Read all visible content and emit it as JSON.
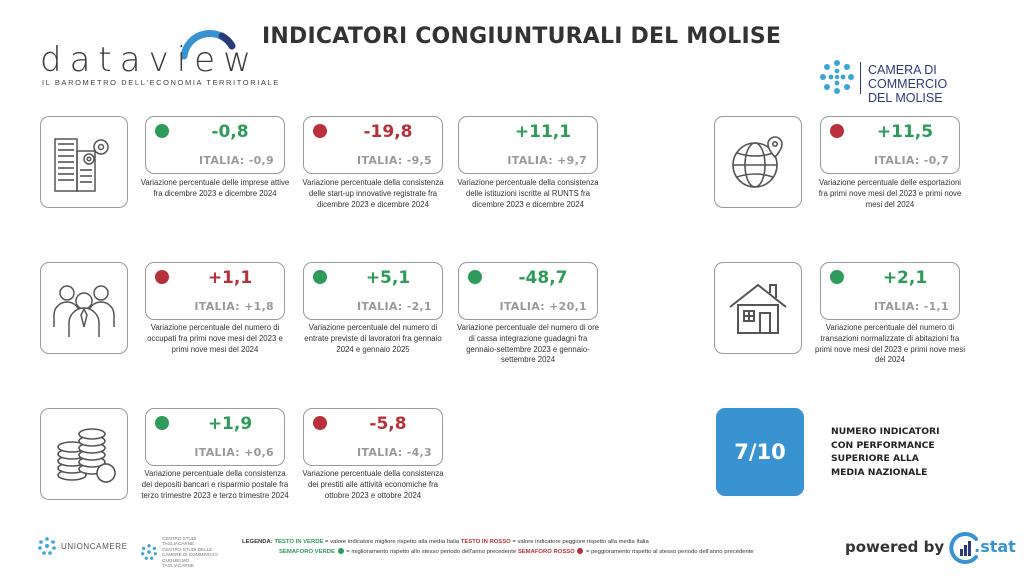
{
  "header": {
    "title": "INDICATORI CONGIUNTURALI DEL MOLISE",
    "logo_word": "dataview",
    "logo_tagline": "IL BAROMETRO DELL'ECONOMIA TERRITORIALE",
    "camera_name": "CAMERA DI COMMERCIO\nDEL MOLISE"
  },
  "colors": {
    "green": "#2e9b5b",
    "red": "#b8303b",
    "blue": "#3a93d1",
    "border": "#9a9a9a"
  },
  "groups": [
    {
      "icon": "office-buildings-gear-icon"
    },
    {
      "icon": "globe-pin-icon"
    },
    {
      "icon": "people-icon"
    },
    {
      "icon": "house-icon"
    },
    {
      "icon": "coins-icon"
    }
  ],
  "indicators": [
    {
      "status": "green",
      "value": "-0,8",
      "italia": "ITALIA: -0,9",
      "desc": "Variazione percentuale delle imprese attive fra dicembre 2023 e dicembre 2024"
    },
    {
      "status": "red",
      "value": "-19,8",
      "italia": "ITALIA: -9,5",
      "desc": "Variazione percentuale della consistenza delle start-up innovative registrate fra dicembre 2023 e dicembre 2024"
    },
    {
      "status": "none",
      "value": "+11,1",
      "italia": "ITALIA: +9,7",
      "desc": "Variazione percentuale della consistenza delle istituzioni iscritte al RUNTS fra dicembre 2023 e dicembre 2024"
    },
    {
      "status": "red",
      "value": "+11,5",
      "italia": "ITALIA: -0,7",
      "desc": "Variazione percentuale delle esportazioni fra primi nove mesi del 2023 e primi nove mesi del 2024"
    },
    {
      "status": "red",
      "value": "+1,1",
      "italia": "ITALIA: +1,8",
      "desc": "Variazione percentuale del numero di occupati fra primi nove mesi del 2023 e primi nove mesi del 2024"
    },
    {
      "status": "green",
      "value": "+5,1",
      "italia": "ITALIA: -2,1",
      "desc": "Variazione percentuale del numero di entrate previste di lavoratori fra gennaio 2024 e gennaio 2025"
    },
    {
      "status": "green",
      "value": "-48,7",
      "italia": "ITALIA: +20,1",
      "desc": "Variazione percentuale del numero di ore di cassa integrazione guadagni fra gennaio-settembre 2023 e gennaio-settembre 2024"
    },
    {
      "status": "green",
      "value": "+2,1",
      "italia": "ITALIA: -1,1",
      "desc": "Variazione percentuale del numero di transazioni normalizzate di abitazioni fra primi nove mesi del 2023 e primi nove mesi del 2024"
    },
    {
      "status": "green",
      "value": "+1,9",
      "italia": "ITALIA: +0,6",
      "desc": "Variazione percentuale della consistenza dei depositi bancari e risparmio postale fra terzo trimestre 2023 e terzo trimestre 2024"
    },
    {
      "status": "red",
      "value": "-5,8",
      "italia": "ITALIA: -4,3",
      "desc": "Variazione percentuale della consistenza dei prestiti alle attività economiche fra ottobre 2023 e ottobre 2024"
    }
  ],
  "summary": {
    "value": "7/10",
    "label": "NUMERO INDICATORI\nCON PERFORMANCE\nSUPERIORE ALLA\nMEDIA NAZIONALE"
  },
  "footer": {
    "unioncamere": "UNIONCAMERE",
    "centro_studi": "CENTRO STUDI TAGLIACARNE\nCENTRO STUDI DELLE CAMERE DI COMMERCIO\nGUGLIELMO TAGLIACARNE",
    "legend_label": "LEGENDA:",
    "legend_green_text": "TESTO IN VERDE",
    "legend_green_desc": " = valore indicatore migliore rispetto alla media Italia ",
    "legend_red_text": "TESTO IN ROSSO",
    "legend_red_desc": " = valore indicatore peggiore rispetto alla media Italia",
    "legend_green_light": "SEMAFORO VERDE",
    "legend_green_light_desc": " = miglioramento rispetto allo stesso periodo dell'anno precedente ",
    "legend_red_light": "SEMAFORO ROSSO",
    "legend_red_light_desc": " = peggioramento rispetto al stesso periodo dell'anno precedente",
    "powered_by": "powered by",
    "powered_brand": ".stat"
  }
}
